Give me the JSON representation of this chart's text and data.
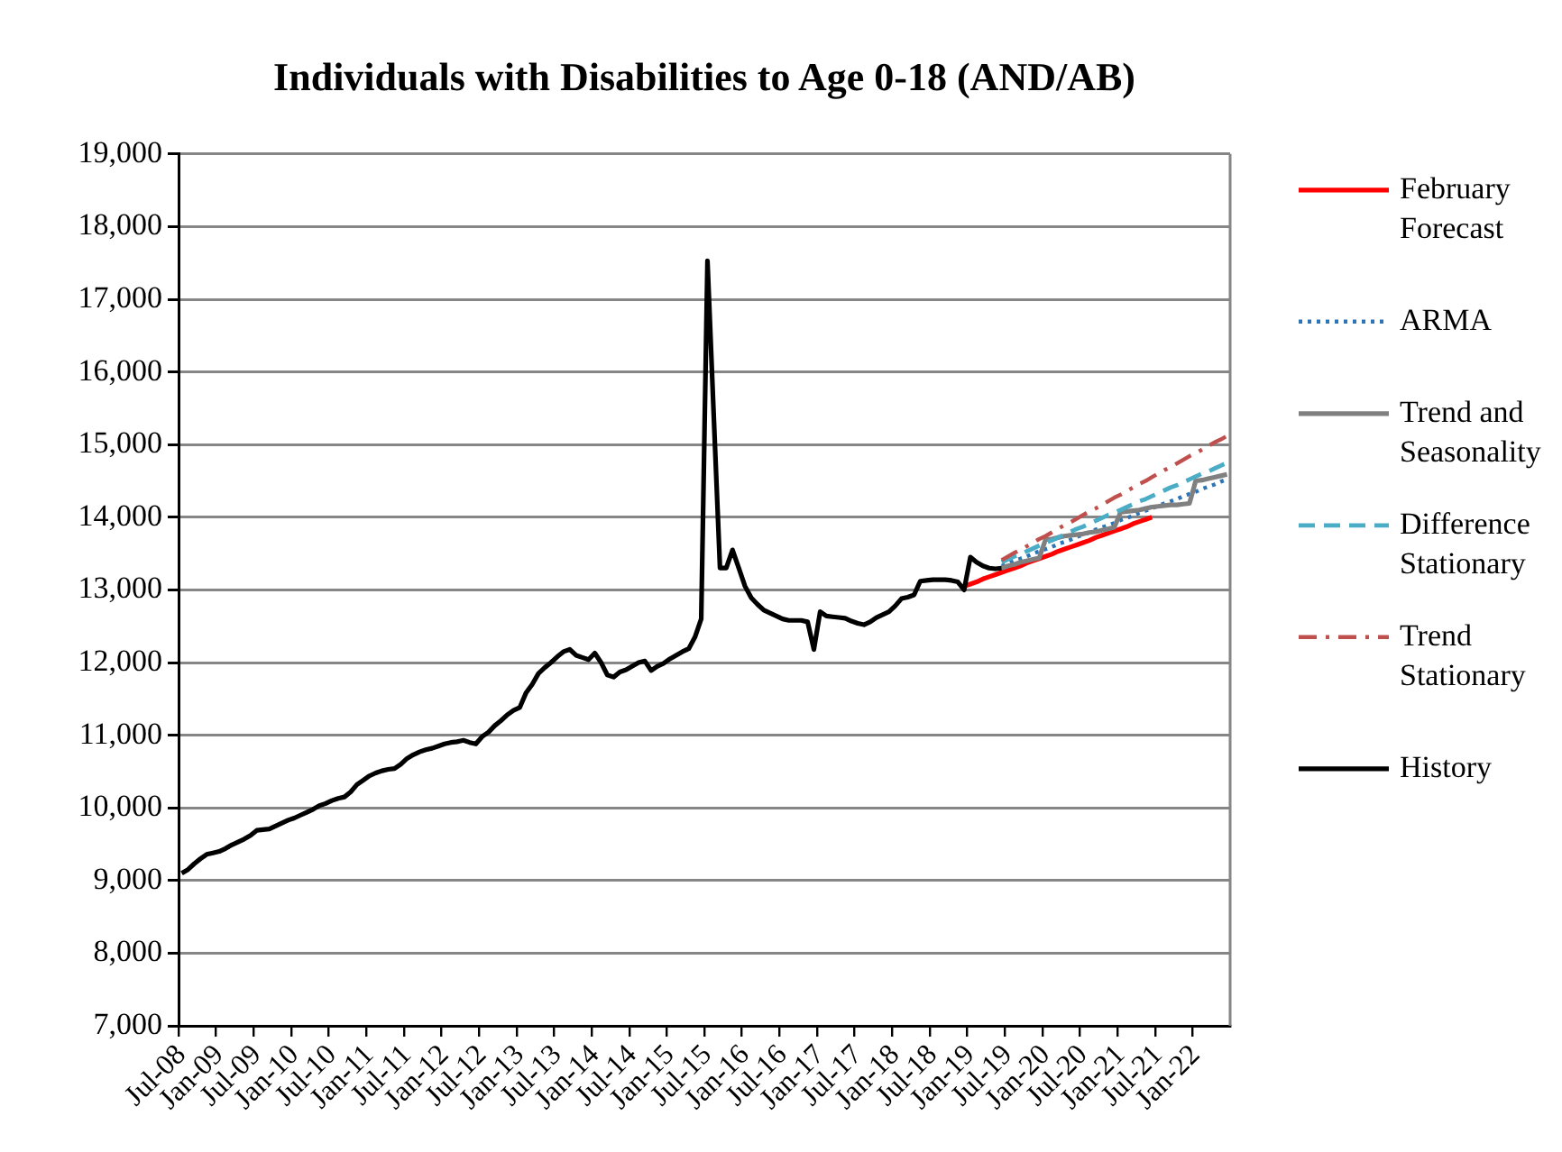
{
  "chart_data": {
    "type": "line",
    "title": "Individuals with Disabilities to Age 0-18 (AND/AB)",
    "categories": [
      "Jul-08",
      null,
      null,
      null,
      null,
      null,
      "Jan-09",
      null,
      null,
      null,
      null,
      null,
      "Jul-09",
      null,
      null,
      null,
      null,
      null,
      "Jan-10",
      null,
      null,
      null,
      null,
      null,
      "Jul-10",
      null,
      null,
      null,
      null,
      null,
      "Jan-11",
      null,
      null,
      null,
      null,
      null,
      "Jul-11",
      null,
      null,
      null,
      null,
      null,
      "Jan-12",
      null,
      null,
      null,
      null,
      null,
      "Jul-12",
      null,
      null,
      null,
      null,
      null,
      "Jan-13",
      null,
      null,
      null,
      null,
      null,
      "Jul-13",
      null,
      null,
      null,
      null,
      null,
      "Jan-14",
      null,
      null,
      null,
      null,
      null,
      "Jul-14",
      null,
      null,
      null,
      null,
      null,
      "Jan-15",
      null,
      null,
      null,
      null,
      null,
      "Jul-15",
      null,
      null,
      null,
      null,
      null,
      "Jan-16",
      null,
      null,
      null,
      null,
      null,
      "Jul-16",
      null,
      null,
      null,
      null,
      null,
      "Jan-17",
      null,
      null,
      null,
      null,
      null,
      "Jul-17",
      null,
      null,
      null,
      null,
      null,
      "Jan-18",
      null,
      null,
      null,
      null,
      null,
      "Jul-18",
      null,
      null,
      null,
      null,
      null,
      "Jan-19",
      null,
      null,
      null,
      null,
      null,
      "Jul-19",
      null,
      null,
      null,
      null,
      null,
      "Jan-20",
      null,
      null,
      null,
      null,
      null,
      "Jul-20",
      null,
      null,
      null,
      null,
      null,
      "Jan-21",
      null,
      null,
      null,
      null,
      null,
      "Jul-21",
      null,
      null,
      null,
      null,
      null,
      "Jan-22",
      null,
      null,
      null,
      null,
      null
    ],
    "series": [
      {
        "name": "February Forecast",
        "color": "#ff0000",
        "line_style": "solid",
        "values": [
          null,
          null,
          null,
          null,
          null,
          null,
          null,
          null,
          null,
          null,
          null,
          null,
          null,
          null,
          null,
          null,
          null,
          null,
          null,
          null,
          null,
          null,
          null,
          null,
          null,
          null,
          null,
          null,
          null,
          null,
          null,
          null,
          null,
          null,
          null,
          null,
          null,
          null,
          null,
          null,
          null,
          null,
          null,
          null,
          null,
          null,
          null,
          null,
          null,
          null,
          null,
          null,
          null,
          null,
          null,
          null,
          null,
          null,
          null,
          null,
          null,
          null,
          null,
          null,
          null,
          null,
          null,
          null,
          null,
          null,
          null,
          null,
          null,
          null,
          null,
          null,
          null,
          null,
          null,
          null,
          null,
          null,
          null,
          null,
          null,
          null,
          null,
          null,
          null,
          null,
          null,
          null,
          null,
          null,
          null,
          null,
          null,
          null,
          null,
          null,
          null,
          null,
          null,
          null,
          null,
          null,
          null,
          null,
          null,
          null,
          null,
          null,
          null,
          null,
          null,
          null,
          null,
          null,
          null,
          null,
          null,
          null,
          null,
          null,
          null,
          13050,
          13080,
          13110,
          13150,
          13180,
          13210,
          13240,
          13270,
          13300,
          13330,
          13370,
          13400,
          13430,
          13460,
          13490,
          13530,
          13560,
          13590,
          13620,
          13650,
          13680,
          13720,
          13750,
          13780,
          13810,
          13840,
          13870,
          13910,
          13940,
          13970,
          14000,
          null,
          null,
          null,
          null,
          null,
          null,
          null,
          null,
          null,
          null,
          null,
          null
        ]
      },
      {
        "name": "ARMA",
        "color": "#2e75b6",
        "line_style": "dotted",
        "values": [
          null,
          null,
          null,
          null,
          null,
          null,
          null,
          null,
          null,
          null,
          null,
          null,
          null,
          null,
          null,
          null,
          null,
          null,
          null,
          null,
          null,
          null,
          null,
          null,
          null,
          null,
          null,
          null,
          null,
          null,
          null,
          null,
          null,
          null,
          null,
          null,
          null,
          null,
          null,
          null,
          null,
          null,
          null,
          null,
          null,
          null,
          null,
          null,
          null,
          null,
          null,
          null,
          null,
          null,
          null,
          null,
          null,
          null,
          null,
          null,
          null,
          null,
          null,
          null,
          null,
          null,
          null,
          null,
          null,
          null,
          null,
          null,
          null,
          null,
          null,
          null,
          null,
          null,
          null,
          null,
          null,
          null,
          null,
          null,
          null,
          null,
          null,
          null,
          null,
          null,
          null,
          null,
          null,
          null,
          null,
          null,
          null,
          null,
          null,
          null,
          null,
          null,
          null,
          null,
          null,
          null,
          null,
          null,
          null,
          null,
          null,
          null,
          null,
          null,
          null,
          null,
          null,
          null,
          null,
          null,
          null,
          null,
          null,
          null,
          null,
          null,
          null,
          null,
          null,
          null,
          null,
          13330,
          13360,
          13400,
          13430,
          13460,
          13500,
          13530,
          13560,
          13590,
          13630,
          13660,
          13690,
          13730,
          13760,
          13790,
          13830,
          13860,
          13890,
          13920,
          13960,
          13990,
          14020,
          14060,
          14090,
          14120,
          14160,
          14190,
          14220,
          14250,
          14290,
          14320,
          14350,
          14390,
          14420,
          14450,
          14490,
          14520
        ]
      },
      {
        "name": "Trend and Seasonality",
        "color": "#808080",
        "line_style": "solid",
        "values": [
          null,
          null,
          null,
          null,
          null,
          null,
          null,
          null,
          null,
          null,
          null,
          null,
          null,
          null,
          null,
          null,
          null,
          null,
          null,
          null,
          null,
          null,
          null,
          null,
          null,
          null,
          null,
          null,
          null,
          null,
          null,
          null,
          null,
          null,
          null,
          null,
          null,
          null,
          null,
          null,
          null,
          null,
          null,
          null,
          null,
          null,
          null,
          null,
          null,
          null,
          null,
          null,
          null,
          null,
          null,
          null,
          null,
          null,
          null,
          null,
          null,
          null,
          null,
          null,
          null,
          null,
          null,
          null,
          null,
          null,
          null,
          null,
          null,
          null,
          null,
          null,
          null,
          null,
          null,
          null,
          null,
          null,
          null,
          null,
          null,
          null,
          null,
          null,
          null,
          null,
          null,
          null,
          null,
          null,
          null,
          null,
          null,
          null,
          null,
          null,
          null,
          null,
          null,
          null,
          null,
          null,
          null,
          null,
          null,
          null,
          null,
          null,
          null,
          null,
          null,
          null,
          null,
          null,
          null,
          null,
          null,
          null,
          null,
          null,
          null,
          null,
          null,
          null,
          null,
          null,
          null,
          13300,
          13330,
          13350,
          13380,
          13400,
          13420,
          13440,
          13690,
          13700,
          13720,
          13740,
          13750,
          13760,
          13770,
          13790,
          13800,
          13820,
          13840,
          13860,
          14070,
          14080,
          14090,
          14100,
          14120,
          14140,
          14150,
          14160,
          14170,
          14170,
          14180,
          14190,
          14500,
          14510,
          14530,
          14550,
          14570,
          14590
        ]
      },
      {
        "name": "Difference Stationary",
        "color": "#4bacc6",
        "line_style": "dashed",
        "values": [
          null,
          null,
          null,
          null,
          null,
          null,
          null,
          null,
          null,
          null,
          null,
          null,
          null,
          null,
          null,
          null,
          null,
          null,
          null,
          null,
          null,
          null,
          null,
          null,
          null,
          null,
          null,
          null,
          null,
          null,
          null,
          null,
          null,
          null,
          null,
          null,
          null,
          null,
          null,
          null,
          null,
          null,
          null,
          null,
          null,
          null,
          null,
          null,
          null,
          null,
          null,
          null,
          null,
          null,
          null,
          null,
          null,
          null,
          null,
          null,
          null,
          null,
          null,
          null,
          null,
          null,
          null,
          null,
          null,
          null,
          null,
          null,
          null,
          null,
          null,
          null,
          null,
          null,
          null,
          null,
          null,
          null,
          null,
          null,
          null,
          null,
          null,
          null,
          null,
          null,
          null,
          null,
          null,
          null,
          null,
          null,
          null,
          null,
          null,
          null,
          null,
          null,
          null,
          null,
          null,
          null,
          null,
          null,
          null,
          null,
          null,
          null,
          null,
          null,
          null,
          null,
          null,
          null,
          null,
          null,
          null,
          null,
          null,
          null,
          null,
          null,
          null,
          null,
          null,
          null,
          null,
          13380,
          13420,
          13460,
          13490,
          13530,
          13570,
          13610,
          13650,
          13680,
          13720,
          13760,
          13800,
          13840,
          13870,
          13910,
          13950,
          13990,
          14030,
          14060,
          14100,
          14140,
          14180,
          14220,
          14250,
          14290,
          14330,
          14370,
          14410,
          14440,
          14480,
          14520,
          14560,
          14600,
          14630,
          14670,
          14710,
          14750
        ]
      },
      {
        "name": "Trend Stationary",
        "color": "#c0504d",
        "line_style": "dashdot",
        "values": [
          null,
          null,
          null,
          null,
          null,
          null,
          null,
          null,
          null,
          null,
          null,
          null,
          null,
          null,
          null,
          null,
          null,
          null,
          null,
          null,
          null,
          null,
          null,
          null,
          null,
          null,
          null,
          null,
          null,
          null,
          null,
          null,
          null,
          null,
          null,
          null,
          null,
          null,
          null,
          null,
          null,
          null,
          null,
          null,
          null,
          null,
          null,
          null,
          null,
          null,
          null,
          null,
          null,
          null,
          null,
          null,
          null,
          null,
          null,
          null,
          null,
          null,
          null,
          null,
          null,
          null,
          null,
          null,
          null,
          null,
          null,
          null,
          null,
          null,
          null,
          null,
          null,
          null,
          null,
          null,
          null,
          null,
          null,
          null,
          null,
          null,
          null,
          null,
          null,
          null,
          null,
          null,
          null,
          null,
          null,
          null,
          null,
          null,
          null,
          null,
          null,
          null,
          null,
          null,
          null,
          null,
          null,
          null,
          null,
          null,
          null,
          null,
          null,
          null,
          null,
          null,
          null,
          null,
          null,
          null,
          null,
          null,
          null,
          null,
          null,
          null,
          null,
          null,
          null,
          null,
          null,
          13410,
          13460,
          13510,
          13550,
          13600,
          13650,
          13700,
          13740,
          13790,
          13840,
          13890,
          13930,
          13980,
          14030,
          14080,
          14120,
          14170,
          14220,
          14270,
          14310,
          14360,
          14410,
          14460,
          14500,
          14550,
          14600,
          14650,
          14690,
          14740,
          14790,
          14840,
          14880,
          14930,
          14980,
          15030,
          15070,
          15120
        ]
      },
      {
        "name": "History",
        "color": "#000000",
        "line_style": "solid",
        "values": [
          9100,
          9150,
          9230,
          9300,
          9360,
          9380,
          9400,
          9440,
          9490,
          9530,
          9570,
          9620,
          9690,
          9700,
          9710,
          9750,
          9790,
          9830,
          9860,
          9900,
          9940,
          9980,
          10030,
          10060,
          10100,
          10130,
          10150,
          10220,
          10320,
          10380,
          10440,
          10480,
          10510,
          10530,
          10540,
          10600,
          10680,
          10730,
          10770,
          10800,
          10820,
          10850,
          10880,
          10900,
          10910,
          10930,
          10900,
          10880,
          10980,
          11040,
          11130,
          11200,
          11280,
          11340,
          11380,
          11580,
          11700,
          11850,
          11930,
          12000,
          12080,
          12150,
          12180,
          12100,
          12070,
          12040,
          12130,
          12000,
          11830,
          11800,
          11870,
          11900,
          11950,
          12000,
          12020,
          11890,
          11950,
          11990,
          12050,
          12100,
          12150,
          12190,
          12350,
          12600,
          17530,
          15400,
          13300,
          13300,
          13550,
          13300,
          13050,
          12890,
          12800,
          12720,
          12680,
          12640,
          12600,
          12580,
          12580,
          12580,
          12560,
          12180,
          12700,
          12640,
          12630,
          12620,
          12610,
          12570,
          12540,
          12520,
          12560,
          12620,
          12660,
          12700,
          12780,
          12880,
          12900,
          12930,
          13120,
          13130,
          13140,
          13140,
          13140,
          13130,
          13110,
          13000,
          13450,
          13380,
          13330,
          13300,
          13290,
          13300,
          null,
          null,
          null,
          null,
          null,
          null,
          null,
          null,
          null,
          null,
          null,
          null,
          null,
          null,
          null,
          null,
          null,
          null,
          null,
          null,
          null,
          null,
          null,
          null,
          null,
          null,
          null,
          null,
          null,
          null,
          null,
          null,
          null,
          null,
          null,
          null
        ]
      }
    ],
    "ylim": [
      7000,
      19000
    ],
    "yticks": [
      {
        "value": 7000,
        "label": "7,000"
      },
      {
        "value": 8000,
        "label": "8,000"
      },
      {
        "value": 9000,
        "label": "9,000"
      },
      {
        "value": 10000,
        "label": "10,000"
      },
      {
        "value": 11000,
        "label": "11,000"
      },
      {
        "value": 12000,
        "label": "12,000"
      },
      {
        "value": 13000,
        "label": "13,000"
      },
      {
        "value": 14000,
        "label": "14,000"
      },
      {
        "value": 15000,
        "label": "15,000"
      },
      {
        "value": 16000,
        "label": "16,000"
      },
      {
        "value": 17000,
        "label": "17,000"
      },
      {
        "value": 18000,
        "label": "18,000"
      },
      {
        "value": 19000,
        "label": "19,000"
      }
    ],
    "grid": "y",
    "legend": "right"
  }
}
